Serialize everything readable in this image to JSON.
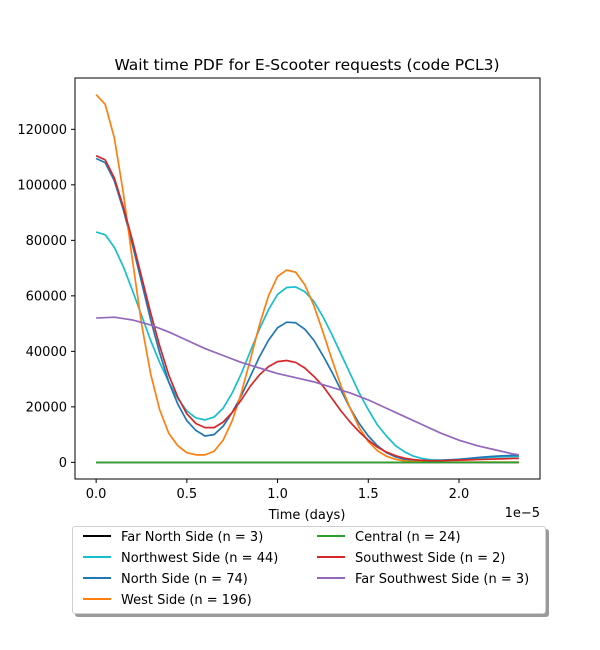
{
  "chart_data": {
    "type": "line",
    "title": "Wait time PDF for E-Scooter  requests (code PCL3)",
    "xlabel": "Time (days)",
    "x_offset_label": "1e−5",
    "xlim": [
      -1.165e-06,
      2.4465e-05
    ],
    "ylim": [
      -6000,
      138500
    ],
    "xticks": [
      0.0,
      5e-06,
      1e-05,
      1.5e-05,
      2e-05
    ],
    "xtick_labels": [
      "0.0",
      "0.5",
      "1.0",
      "1.5",
      "2.0"
    ],
    "yticks": [
      0,
      20000,
      40000,
      60000,
      80000,
      100000,
      120000
    ],
    "ytick_labels": [
      "0",
      "20000",
      "40000",
      "60000",
      "80000",
      "100000",
      "120000"
    ],
    "grid": false,
    "legend_placement": "below",
    "series": [
      {
        "name": "Far North Side (n = 3)",
        "color": "#000000",
        "x": [
          0.0,
          5e-06,
          1e-05,
          1.5e-05,
          2e-05,
          2.33e-05
        ],
        "values": [
          0,
          0,
          0,
          0,
          0,
          0
        ]
      },
      {
        "name": "Northwest Side (n = 44)",
        "color": "#17becf",
        "x": [
          0.0,
          5e-07,
          1e-06,
          1.5e-06,
          2e-06,
          2.5e-06,
          3e-06,
          3.5e-06,
          4e-06,
          4.5e-06,
          5e-06,
          5.5e-06,
          6e-06,
          6.5e-06,
          7e-06,
          7.5e-06,
          8e-06,
          8.5e-06,
          9e-06,
          9.5e-06,
          1e-05,
          1.05e-05,
          1.1e-05,
          1.15e-05,
          1.2e-05,
          1.25e-05,
          1.3e-05,
          1.35e-05,
          1.4e-05,
          1.45e-05,
          1.5e-05,
          1.55e-05,
          1.6e-05,
          1.65e-05,
          1.7e-05,
          1.75e-05,
          1.8e-05,
          1.85e-05,
          1.9e-05,
          1.95e-05,
          2e-05,
          2.05e-05,
          2.1e-05,
          2.15e-05,
          2.2e-05,
          2.25e-05,
          2.3e-05,
          2.33e-05
        ],
        "values": [
          83000,
          82000,
          77500,
          70500,
          62000,
          53000,
          44000,
          36000,
          29000,
          23000,
          18500,
          16000,
          15300,
          16300,
          19500,
          25000,
          32000,
          40000,
          48000,
          55000,
          60500,
          63000,
          63200,
          61500,
          58000,
          52500,
          46000,
          39000,
          32000,
          25000,
          19000,
          13500,
          9500,
          6000,
          3800,
          2200,
          1300,
          900,
          800,
          900,
          1100,
          1300,
          1500,
          1700,
          1900,
          2000,
          2100,
          2100
        ]
      },
      {
        "name": "North Side (n = 74)",
        "color": "#1f77b4",
        "x": [
          0.0,
          5e-07,
          1e-06,
          1.5e-06,
          2e-06,
          2.5e-06,
          3e-06,
          3.5e-06,
          4e-06,
          4.5e-06,
          5e-06,
          5.5e-06,
          6e-06,
          6.5e-06,
          7e-06,
          7.5e-06,
          8e-06,
          8.5e-06,
          9e-06,
          9.5e-06,
          1e-05,
          1.05e-05,
          1.1e-05,
          1.15e-05,
          1.2e-05,
          1.25e-05,
          1.3e-05,
          1.35e-05,
          1.4e-05,
          1.45e-05,
          1.5e-05,
          1.55e-05,
          1.6e-05,
          1.65e-05,
          1.7e-05,
          1.75e-05,
          1.8e-05,
          1.85e-05,
          1.9e-05,
          1.95e-05,
          2e-05,
          2.05e-05,
          2.1e-05,
          2.15e-05,
          2.2e-05,
          2.25e-05,
          2.3e-05,
          2.33e-05
        ],
        "values": [
          109500,
          108000,
          101500,
          91000,
          78500,
          65000,
          51500,
          39500,
          29000,
          21000,
          15000,
          11500,
          9500,
          10000,
          13000,
          18000,
          24000,
          31000,
          38000,
          44000,
          48500,
          50500,
          50300,
          48000,
          44000,
          38500,
          32500,
          26000,
          19500,
          14000,
          9500,
          6000,
          3500,
          2000,
          1100,
          700,
          500,
          500,
          700,
          900,
          1100,
          1400,
          1700,
          2000,
          2200,
          2400,
          2500,
          2500
        ]
      },
      {
        "name": "West Side (n = 196)",
        "color": "#ff7f0e",
        "x": [
          0.0,
          5e-07,
          1e-06,
          1.5e-06,
          2e-06,
          2.5e-06,
          3e-06,
          3.5e-06,
          4e-06,
          4.5e-06,
          5e-06,
          5.5e-06,
          6e-06,
          6.5e-06,
          7e-06,
          7.5e-06,
          8e-06,
          8.5e-06,
          9e-06,
          9.5e-06,
          1e-05,
          1.05e-05,
          1.1e-05,
          1.15e-05,
          1.2e-05,
          1.25e-05,
          1.3e-05,
          1.35e-05,
          1.4e-05,
          1.45e-05,
          1.5e-05,
          1.55e-05,
          1.6e-05,
          1.65e-05,
          1.7e-05,
          1.75e-05,
          1.8e-05,
          1.85e-05,
          1.9e-05,
          1.95e-05,
          2e-05,
          2.05e-05,
          2.1e-05,
          2.15e-05,
          2.2e-05,
          2.25e-05,
          2.3e-05,
          2.33e-05
        ],
        "values": [
          132500,
          129000,
          117000,
          97000,
          73000,
          50000,
          32000,
          19000,
          10500,
          6000,
          3500,
          2700,
          2700,
          4000,
          8000,
          15000,
          25000,
          37000,
          49500,
          60000,
          67000,
          69300,
          68500,
          64000,
          56500,
          47000,
          37000,
          27500,
          19500,
          12500,
          7500,
          4200,
          2200,
          1100,
          500,
          300,
          200,
          100,
          100,
          100,
          100,
          100,
          100,
          100,
          100,
          100,
          100,
          100
        ]
      },
      {
        "name": "Central (n = 24)",
        "color": "#2ca02c",
        "x": [
          0.0,
          5e-06,
          1e-05,
          1.5e-05,
          2e-05,
          2.33e-05
        ],
        "values": [
          0,
          0,
          0,
          0,
          0,
          0
        ]
      },
      {
        "name": "Southwest Side (n = 2)",
        "color": "#d62728",
        "x": [
          0.0,
          5e-07,
          1e-06,
          1.5e-06,
          2e-06,
          2.5e-06,
          3e-06,
          3.5e-06,
          4e-06,
          4.5e-06,
          5e-06,
          5.5e-06,
          6e-06,
          6.5e-06,
          7e-06,
          7.5e-06,
          8e-06,
          8.5e-06,
          9e-06,
          9.5e-06,
          1e-05,
          1.05e-05,
          1.1e-05,
          1.15e-05,
          1.2e-05,
          1.25e-05,
          1.3e-05,
          1.35e-05,
          1.4e-05,
          1.45e-05,
          1.5e-05,
          1.55e-05,
          1.6e-05,
          1.65e-05,
          1.7e-05,
          1.75e-05,
          1.8e-05,
          1.85e-05,
          1.9e-05,
          1.95e-05,
          2e-05,
          2.05e-05,
          2.1e-05,
          2.15e-05,
          2.2e-05,
          2.25e-05,
          2.3e-05,
          2.33e-05
        ],
        "values": [
          110500,
          109000,
          102500,
          92000,
          80000,
          67000,
          54000,
          42000,
          31500,
          23500,
          17500,
          14000,
          12500,
          12500,
          14500,
          18000,
          22500,
          27500,
          31500,
          34500,
          36300,
          36700,
          36000,
          34000,
          31000,
          27500,
          23000,
          18500,
          14500,
          11000,
          8000,
          5500,
          3700,
          2400,
          1500,
          1000,
          700,
          600,
          600,
          700,
          800,
          900,
          1000,
          1100,
          1200,
          1300,
          1400,
          1400
        ]
      },
      {
        "name": "Far Southwest Side (n = 3)",
        "color": "#9467bd",
        "x": [
          0.0,
          1e-06,
          2e-06,
          3e-06,
          4e-06,
          5e-06,
          6e-06,
          7e-06,
          8e-06,
          9e-06,
          1e-05,
          1.1e-05,
          1.2e-05,
          1.3e-05,
          1.4e-05,
          1.5e-05,
          1.6e-05,
          1.7e-05,
          1.8e-05,
          1.9e-05,
          2e-05,
          2.1e-05,
          2.2e-05,
          2.3e-05,
          2.33e-05
        ],
        "values": [
          52000,
          52300,
          51300,
          49500,
          47000,
          44000,
          41000,
          38500,
          36000,
          34000,
          32000,
          30500,
          29000,
          27000,
          25000,
          22500,
          19500,
          16500,
          13500,
          10500,
          8000,
          6000,
          4500,
          3000,
          2700
        ]
      }
    ]
  }
}
